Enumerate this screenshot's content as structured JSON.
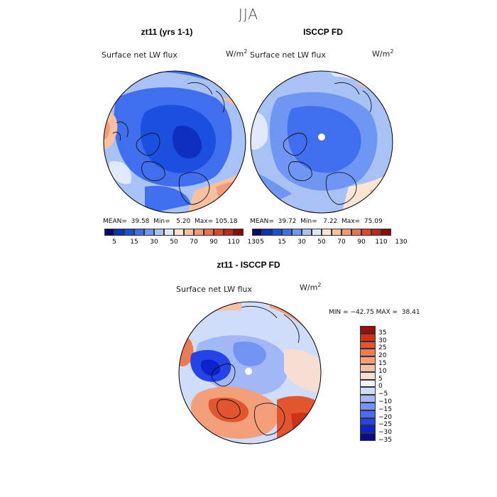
{
  "title": "JJA",
  "units": "W/m",
  "units_exp": "2",
  "colors": {
    "sequential": [
      "#08086b",
      "#0e2fbf",
      "#1a4fe0",
      "#3f6fee",
      "#6f96f2",
      "#a9c2f5",
      "#dfe9fb",
      "#fbe6d6",
      "#f9c0a0",
      "#f59a76",
      "#ee7050",
      "#e0472a",
      "#c0261a",
      "#8b0a0a"
    ],
    "diverging": [
      "#090b8a",
      "#0d23c9",
      "#2443e6",
      "#4a6cf0",
      "#7393f3",
      "#a2b8f6",
      "#cfdcfa",
      "#f2f2f6",
      "#f6dfd2",
      "#f5c0a3",
      "#f29f7a",
      "#ec7a52",
      "#e2552f",
      "#cc3218",
      "#9c0e0a"
    ],
    "land_line": "#111111"
  },
  "panels": [
    {
      "id": "model",
      "title": "zt11 (yrs 1-1)",
      "variable": "Surface net LW flux",
      "stats": {
        "mean_label": "MEAN=",
        "mean": "39.58",
        "min_label": "Min=",
        "min": "5.20",
        "max_label": "Max=",
        "max": "105.18"
      },
      "colorbar_ticks": [
        "5",
        "15",
        "30",
        "50",
        "70",
        "90",
        "110",
        "130"
      ]
    },
    {
      "id": "obs",
      "title": "ISCCP FD",
      "variable": "Surface net LW flux",
      "stats": {
        "mean_label": "MEAN=",
        "mean": "39.72",
        "min_label": "Min=",
        "min": "7.22",
        "max_label": "Max=",
        "max": "75.09"
      },
      "colorbar_ticks": [
        "5",
        "15",
        "30",
        "50",
        "70",
        "90",
        "110",
        "130"
      ]
    },
    {
      "id": "diff",
      "title": "zt11 - ISCCP FD",
      "variable": "Surface net LW flux",
      "minmax": "MIN = −42.75 MAX =  38.41",
      "colorbar_ticks": [
        "35",
        "30",
        "25",
        "20",
        "15",
        "10",
        "5",
        "0",
        "−5",
        "−10",
        "−15",
        "−20",
        "−25",
        "−30",
        "−35"
      ]
    }
  ],
  "chart_data": [
    {
      "type": "heatmap",
      "projection": "north-polar-stereographic",
      "title": "zt11 (yrs 1-1)",
      "variable": "Surface net LW flux",
      "units": "W/m^2",
      "mean": 39.58,
      "min": 5.2,
      "max": 105.18,
      "contour_levels": [
        5,
        15,
        30,
        50,
        70,
        90,
        110,
        130
      ],
      "dominant_pattern": "30-50 over Arctic Ocean and Siberia, 70-90 in coastal regions"
    },
    {
      "type": "heatmap",
      "projection": "north-polar-stereographic",
      "title": "ISCCP FD",
      "variable": "Surface net LW flux",
      "units": "W/m^2",
      "mean": 39.72,
      "min": 7.22,
      "max": 75.09,
      "contour_levels": [
        5,
        15,
        30,
        50,
        70,
        90,
        110,
        130
      ],
      "dominant_pattern": "30-50 over Arctic Ocean, missing data at pole"
    },
    {
      "type": "heatmap",
      "projection": "north-polar-stereographic",
      "title": "zt11 - ISCCP FD",
      "variable": "Surface net LW flux",
      "units": "W/m^2",
      "min": -42.75,
      "max": 38.41,
      "contour_levels": [
        -35,
        -30,
        -25,
        -20,
        -15,
        -10,
        -5,
        0,
        5,
        10,
        15,
        20,
        25,
        30,
        35
      ],
      "dominant_pattern": "negative over Arctic/Greenland, positive over Eurasia and N. America"
    }
  ]
}
